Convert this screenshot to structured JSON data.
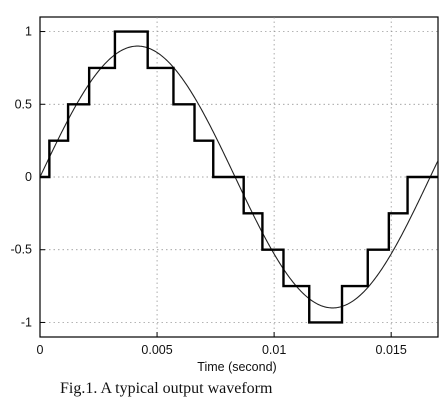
{
  "caption": "Fig.1. A typical output waveform",
  "chart_data": {
    "type": "line",
    "title": "",
    "xlabel": "Time (second)",
    "ylabel": "",
    "xlim": [
      0,
      0.017
    ],
    "ylim": [
      -1.1,
      1.1
    ],
    "xticks": [
      0,
      0.005,
      0.01,
      0.015
    ],
    "xtick_labels": [
      "0",
      "0.005",
      "0.01",
      "0.015"
    ],
    "yticks": [
      1,
      0.5,
      0,
      -0.5,
      -1
    ],
    "ytick_labels": [
      "1",
      "0.5",
      "0",
      "-0.5",
      "-1"
    ],
    "grid": "dotted",
    "series": [
      {
        "kind": "sine",
        "amplitude": 0.9,
        "frequency_hz": 60,
        "x": [
          0,
          0.001,
          0.002,
          0.003,
          0.004,
          0.005,
          0.006,
          0.007,
          0.008,
          0.009,
          0.01,
          0.011,
          0.012,
          0.013,
          0.014,
          0.015,
          0.016,
          0.017
        ],
        "values": [
          0,
          0.33,
          0.62,
          0.82,
          0.9,
          0.82,
          0.63,
          0.35,
          0.03,
          -0.3,
          -0.61,
          -0.81,
          -0.9,
          -0.83,
          -0.65,
          -0.37,
          -0.06,
          0.27
        ]
      },
      {
        "kind": "staircase",
        "step_edges": [
          0,
          0.0004,
          0.0012,
          0.0021,
          0.0032,
          0.0046,
          0.0057,
          0.0066,
          0.0074,
          0.0087,
          0.0095,
          0.0104,
          0.0115,
          0.0129,
          0.014,
          0.0149,
          0.0157,
          0.0163,
          0.017
        ],
        "levels": [
          0,
          0.25,
          0.5,
          0.75,
          1,
          0.75,
          0.5,
          0.25,
          0,
          -0.25,
          -0.5,
          -0.75,
          -1,
          -0.75,
          -0.5,
          -0.25,
          0,
          0
        ]
      }
    ]
  }
}
